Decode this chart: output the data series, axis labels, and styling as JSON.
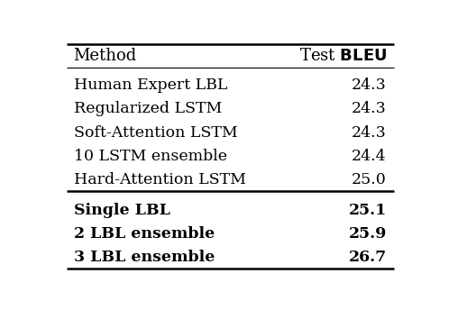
{
  "header": [
    "Method",
    "Test BLEU"
  ],
  "group1": [
    [
      "Human Expert LBL",
      "24.3",
      false
    ],
    [
      "Regularized LSTM",
      "24.3",
      false
    ],
    [
      "Soft-Attention LSTM",
      "24.3",
      false
    ],
    [
      "10 LSTM ensemble",
      "24.4",
      false
    ],
    [
      "Hard-Attention LSTM",
      "25.0",
      false
    ]
  ],
  "group2": [
    [
      "Single LBL",
      "25.1",
      true
    ],
    [
      "2 LBL ensemble",
      "25.9",
      true
    ],
    [
      "3 LBL ensemble",
      "26.7",
      true
    ]
  ],
  "bg_color": "#ffffff",
  "text_color": "#000000",
  "header_fontsize": 13,
  "body_fontsize": 12.5,
  "line_color": "#000000",
  "lw_thick": 1.8,
  "lw_thin": 0.8
}
